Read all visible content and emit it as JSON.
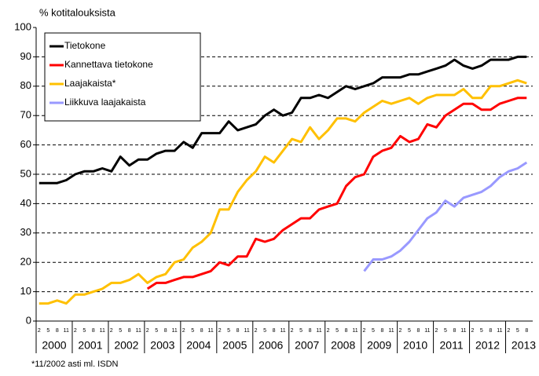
{
  "chart_data": {
    "type": "line",
    "y_label": "% kotitalouksista",
    "footnote": "*11/2002 asti ml. ISDN",
    "x": [
      "2000-02",
      "2000-05",
      "2000-08",
      "2000-11",
      "2001-02",
      "2001-05",
      "2001-08",
      "2001-11",
      "2002-02",
      "2002-05",
      "2002-08",
      "2002-11",
      "2003-02",
      "2003-05",
      "2003-08",
      "2003-11",
      "2004-02",
      "2004-05",
      "2004-08",
      "2004-11",
      "2005-02",
      "2005-05",
      "2005-08",
      "2005-11",
      "2006-02",
      "2006-05",
      "2006-08",
      "2006-11",
      "2007-02",
      "2007-05",
      "2007-08",
      "2007-11",
      "2008-02",
      "2008-05",
      "2008-08",
      "2008-11",
      "2009-02",
      "2009-05",
      "2009-08",
      "2009-11",
      "2010-02",
      "2010-05",
      "2010-08",
      "2010-11",
      "2011-02",
      "2011-05",
      "2011-08",
      "2011-11",
      "2012-02",
      "2012-05",
      "2012-08",
      "2012-11",
      "2013-02",
      "2013-05",
      "2013-08"
    ],
    "series": [
      {
        "name": "Tietokone",
        "color": "#000000",
        "values": [
          47,
          47,
          47,
          48,
          50,
          51,
          51,
          52,
          51,
          56,
          53,
          55,
          55,
          57,
          58,
          58,
          61,
          59,
          64,
          64,
          64,
          68,
          65,
          66,
          67,
          70,
          72,
          70,
          71,
          76,
          76,
          77,
          76,
          78,
          80,
          79,
          80,
          81,
          83,
          83,
          83,
          84,
          84,
          85,
          86,
          87,
          89,
          87,
          86,
          87,
          89,
          89,
          89,
          90,
          90
        ]
      },
      {
        "name": "Kannettava tietokone",
        "color": "#ff0000",
        "values": [
          null,
          null,
          null,
          null,
          null,
          null,
          null,
          null,
          null,
          null,
          null,
          null,
          11,
          13,
          13,
          14,
          15,
          15,
          16,
          17,
          20,
          19,
          22,
          22,
          28,
          27,
          28,
          31,
          33,
          35,
          35,
          38,
          39,
          40,
          46,
          49,
          50,
          56,
          58,
          59,
          63,
          61,
          62,
          67,
          66,
          70,
          72,
          74,
          74,
          72,
          72,
          74,
          75,
          76,
          76
        ]
      },
      {
        "name": "Laajakaista*",
        "color": "#ffc000",
        "values": [
          6,
          6,
          7,
          6,
          9,
          9,
          10,
          11,
          13,
          13,
          14,
          16,
          13,
          15,
          16,
          20,
          21,
          25,
          27,
          30,
          38,
          38,
          44,
          48,
          51,
          56,
          54,
          58,
          62,
          61,
          66,
          62,
          65,
          69,
          69,
          68,
          71,
          73,
          75,
          74,
          75,
          76,
          74,
          76,
          77,
          77,
          77,
          79,
          76,
          76,
          80,
          80,
          81,
          82,
          81
        ]
      },
      {
        "name": "Liikkuva laajakaista",
        "color": "#9999ff",
        "values": [
          null,
          null,
          null,
          null,
          null,
          null,
          null,
          null,
          null,
          null,
          null,
          null,
          null,
          null,
          null,
          null,
          null,
          null,
          null,
          null,
          null,
          null,
          null,
          null,
          null,
          null,
          null,
          null,
          null,
          null,
          null,
          null,
          null,
          null,
          null,
          null,
          17,
          21,
          21,
          22,
          24,
          27,
          31,
          35,
          37,
          41,
          39,
          42,
          43,
          44,
          46,
          49,
          51,
          52,
          54
        ]
      }
    ],
    "xticks": [
      2000,
      2001,
      2002,
      2003,
      2004,
      2005,
      2006,
      2007,
      2008,
      2009,
      2010,
      2011,
      2012,
      2013
    ],
    "month_labels": [
      "2",
      "5",
      "8",
      "11"
    ],
    "xlim": [
      2000,
      2013.75
    ],
    "ylim": [
      0,
      100
    ],
    "yticks": [
      0,
      10,
      20,
      30,
      40,
      50,
      60,
      70,
      80,
      90,
      100
    ],
    "grid": true,
    "legend": "upper left"
  }
}
